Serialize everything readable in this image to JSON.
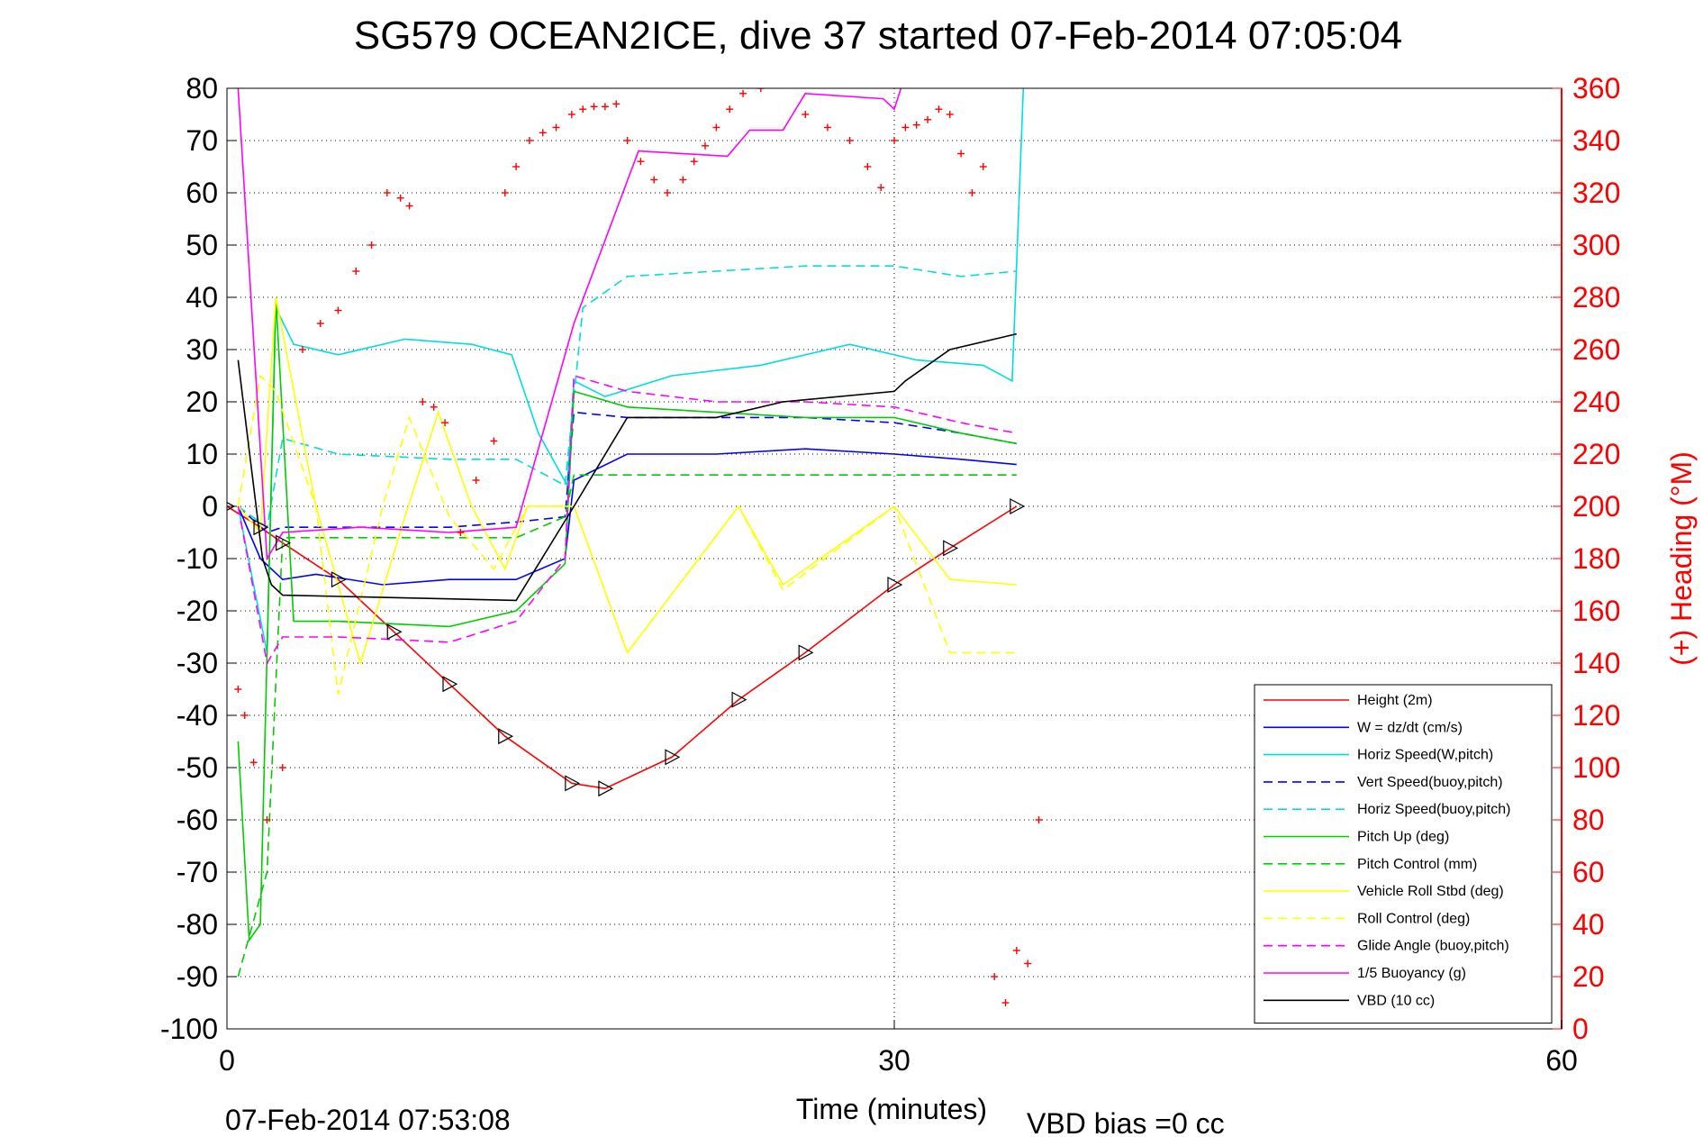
{
  "chart_data": {
    "type": "line",
    "title": "SG579 OCEAN2ICE, dive 37 started 07-Feb-2014 07:05:04",
    "xlabel": "Time (minutes)",
    "ylabel": "",
    "y2label": "(+) Heading (°M)",
    "xlim": [
      0,
      60
    ],
    "ylim": [
      -100,
      80
    ],
    "y2lim": [
      0,
      360
    ],
    "xticks": [
      "0",
      "30",
      "60"
    ],
    "yticks": [
      "80",
      "70",
      "60",
      "50",
      "40",
      "30",
      "20",
      "10",
      "0",
      "-10",
      "-20",
      "-30",
      "-40",
      "-50",
      "-60",
      "-70",
      "-80",
      "-90",
      "-100"
    ],
    "y2ticks": [
      "360",
      "340",
      "320",
      "300",
      "280",
      "260",
      "240",
      "220",
      "200",
      "180",
      "160",
      "140",
      "120",
      "100",
      "80",
      "60",
      "40",
      "20",
      "0"
    ],
    "grid": true,
    "legend_position": "lower-right",
    "footer_left": "07-Feb-2014 07:53:08",
    "footer_right": "VBD bias =0 cc",
    "series": [
      {
        "name": "Height (2m)",
        "color": "#ff0000",
        "dash": "solid",
        "x": [
          0.0,
          1.5,
          2.5,
          5,
          7.5,
          10,
          12.5,
          15.5,
          17,
          20,
          23,
          26,
          30,
          32.5,
          35.5
        ],
        "y": [
          0,
          -4,
          -7,
          -14,
          -24,
          -34,
          -44,
          -53,
          -54,
          -48,
          -37,
          -28,
          -15,
          -8,
          0
        ]
      },
      {
        "name": "W = dz/dt (cm/s)",
        "color": "#0000ff",
        "dash": "solid",
        "x": [
          0.5,
          1.5,
          2.5,
          4,
          7,
          10,
          13,
          15.2,
          15.6,
          18,
          22,
          26,
          30,
          33,
          35.5
        ],
        "y": [
          0,
          -10,
          -14,
          -13,
          -15,
          -14,
          -14,
          -10,
          5,
          10,
          10,
          11,
          10,
          9,
          8
        ]
      },
      {
        "name": "Horiz Speed(W,pitch)",
        "color": "#00dddd",
        "dash": "solid",
        "x": [
          0.5,
          1.8,
          2.2,
          3,
          5,
          8,
          11,
          12.8,
          14,
          15.3,
          15.6,
          17,
          20,
          24,
          28,
          31,
          34,
          35.3,
          35.8
        ],
        "y": [
          0,
          -28,
          38,
          31,
          29,
          32,
          31,
          29,
          14,
          4,
          24,
          21,
          25,
          27,
          31,
          28,
          27,
          24,
          80
        ]
      },
      {
        "name": "Vert Speed(buoy,pitch)",
        "color": "#0000ff",
        "dash": "dash",
        "x": [
          0.5,
          1.8,
          2.5,
          5,
          10,
          13,
          15.2,
          15.6,
          18,
          22,
          26,
          30,
          33,
          35.5
        ],
        "y": [
          0,
          -5,
          -4,
          -4,
          -4,
          -3,
          -2,
          18,
          17,
          17,
          17,
          16,
          14,
          12
        ]
      },
      {
        "name": "Horiz Speed(buoy,pitch)",
        "color": "#00dddd",
        "dash": "dash",
        "x": [
          0.5,
          1.8,
          2.5,
          5,
          10,
          13,
          15.2,
          16,
          18,
          22,
          26,
          30,
          33,
          35.5
        ],
        "y": [
          0,
          -4,
          13,
          10,
          9,
          9,
          4,
          38,
          44,
          45,
          46,
          46,
          44,
          45
        ]
      },
      {
        "name": "Pitch Up (deg)",
        "color": "#00cc00",
        "dash": "solid",
        "x": [
          0.5,
          1.0,
          1.5,
          2.2,
          3,
          5,
          10,
          13,
          15.2,
          15.6,
          18,
          22,
          26,
          30,
          33,
          35.5
        ],
        "y": [
          -45,
          -83,
          -80,
          40,
          -22,
          -22,
          -23,
          -20,
          -11,
          22,
          19,
          18,
          17,
          17,
          14,
          12
        ]
      },
      {
        "name": "Pitch Control (mm)",
        "color": "#00cc00",
        "dash": "dash",
        "x": [
          0.5,
          1.8,
          2.5,
          13,
          15.2,
          15.6,
          35.5
        ],
        "y": [
          -90,
          -70,
          -6,
          -6,
          -2,
          6,
          6
        ]
      },
      {
        "name": "Vehicle Roll Stbd (deg)",
        "color": "#ffff00",
        "dash": "solid",
        "x": [
          0.5,
          1.5,
          2.2,
          4,
          6,
          8,
          9.5,
          11,
          12.5,
          13.5,
          15.6,
          18,
          23,
          25,
          30,
          32.5,
          35.5
        ],
        "y": [
          0,
          -5,
          40,
          0,
          -30,
          -2,
          18,
          0,
          -12,
          0,
          0,
          -28,
          0,
          -15,
          0,
          -14,
          -15
        ]
      },
      {
        "name": "Roll Control (deg)",
        "color": "#ffff00",
        "dash": "dash",
        "x": [
          0.5,
          1.5,
          2.2,
          4,
          5,
          7,
          8.2,
          10,
          12,
          13.5,
          15.6,
          18,
          23,
          25,
          30,
          32.5,
          35.5
        ],
        "y": [
          0,
          25,
          22,
          0,
          -36,
          0,
          17,
          -2,
          -12,
          0,
          0,
          -28,
          0,
          -16,
          0,
          -28,
          -28
        ]
      },
      {
        "name": "Glide Angle (buoy,pitch)",
        "color": "#ff00ff",
        "dash": "dash",
        "x": [
          0.5,
          1.8,
          2.5,
          5,
          10,
          13,
          15.2,
          15.6,
          18,
          22,
          26,
          30,
          33,
          35.5
        ],
        "y": [
          0,
          -30,
          -25,
          -25,
          -26,
          -22,
          -10,
          25,
          22,
          20,
          20,
          19,
          16,
          14
        ]
      },
      {
        "name": "1/5 Buoyancy (g)",
        "color": "#ff00ff",
        "dash": "solid",
        "x": [
          0.5,
          1.8,
          2.5,
          6,
          10,
          13,
          15.6,
          18.5,
          22.5,
          23.5,
          25,
          26,
          29.5,
          30,
          30.3
        ],
        "y": [
          80,
          -10,
          -5,
          -4,
          -5,
          -4,
          35,
          68,
          67,
          72,
          72,
          79,
          78,
          76,
          80
        ]
      },
      {
        "name": "VBD (10 cc)",
        "color": "#000000",
        "dash": "solid",
        "x": [
          0.5,
          1.6,
          2.0,
          2.5,
          13,
          15.6,
          18,
          22,
          25,
          30,
          30.5,
          32.5,
          35.5
        ],
        "y": [
          28,
          -10,
          -15,
          -17,
          -18,
          0,
          17,
          17,
          20,
          22,
          24,
          30,
          33
        ]
      }
    ],
    "heading": {
      "name": "(+) Heading",
      "color": "#ff0000",
      "x": [
        0.5,
        0.8,
        1.2,
        1.8,
        2.5,
        3.4,
        4.2,
        5.0,
        5.8,
        6.5,
        7.2,
        7.8,
        8.2,
        8.8,
        9.3,
        9.8,
        10.5,
        11.2,
        12.0,
        12.5,
        13.0,
        13.6,
        14.2,
        14.8,
        15.5,
        16.0,
        16.5,
        17.0,
        17.5,
        18.0,
        18.6,
        19.2,
        19.8,
        20.5,
        21.0,
        21.5,
        22.0,
        22.6,
        23.2,
        24.0,
        25.0,
        26.0,
        27.0,
        28.0,
        28.8,
        29.4,
        30.0,
        30.5,
        31.0,
        31.5,
        32.0,
        32.5,
        33.0,
        33.5,
        34.0,
        34.5,
        35.0,
        35.5,
        36.0,
        36.5
      ],
      "y": [
        130,
        120,
        102,
        80,
        100,
        260,
        270,
        275,
        290,
        300,
        320,
        318,
        315,
        240,
        238,
        232,
        190,
        210,
        225,
        320,
        330,
        340,
        343,
        345,
        350,
        352,
        353,
        353,
        354,
        340,
        332,
        325,
        320,
        325,
        332,
        338,
        345,
        352,
        358,
        360,
        362,
        350,
        345,
        340,
        330,
        322,
        340,
        345,
        346,
        348,
        352,
        350,
        335,
        320,
        330,
        20,
        10,
        30,
        25,
        80
      ]
    }
  }
}
